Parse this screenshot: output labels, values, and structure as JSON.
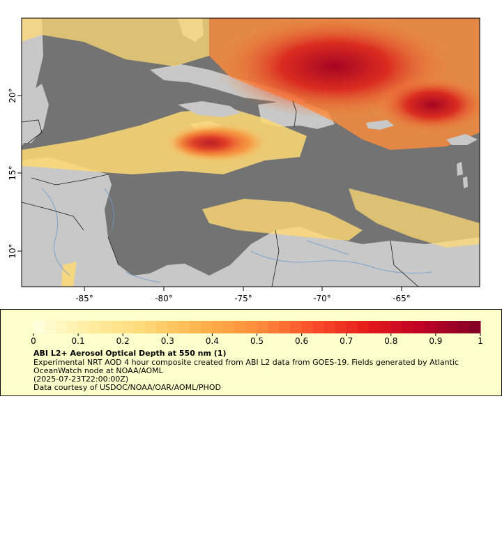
{
  "map": {
    "x_ticks": [
      "-85°",
      "-80°",
      "-75°",
      "-70°",
      "-65°"
    ],
    "y_ticks": [
      "10°",
      "15°",
      "20°"
    ],
    "colors": {
      "ocean": "#737373",
      "land": "#c8c8c8",
      "border": "#1a1a1a",
      "river": "#6a9ad0"
    }
  },
  "legend": {
    "ticks": [
      "0",
      "0.1",
      "0.2",
      "0.3",
      "0.4",
      "0.5",
      "0.6",
      "0.7",
      "0.8",
      "0.9",
      "1"
    ],
    "scale_min": 0,
    "scale_max": 1,
    "colormap": [
      "#ffffe0",
      "#ffeda0",
      "#fed976",
      "#feb24c",
      "#fd8d3c",
      "#fc4e2a",
      "#e31a1c",
      "#bd0026",
      "#800026"
    ],
    "title": "ABI L2+ Aerosol Optical Depth at 550 nm (1)",
    "description": "Experimental NRT AOD 4 hour composite created from ABI L2 data from GOES-19. Fields generated by Atlantic OceanWatch node at NOAA/AOML",
    "timestamp": "(2025-07-23T22:00:00Z)",
    "credit": "Data courtesy of USDOC/NOAA/OAR/AOML/PHOD"
  }
}
